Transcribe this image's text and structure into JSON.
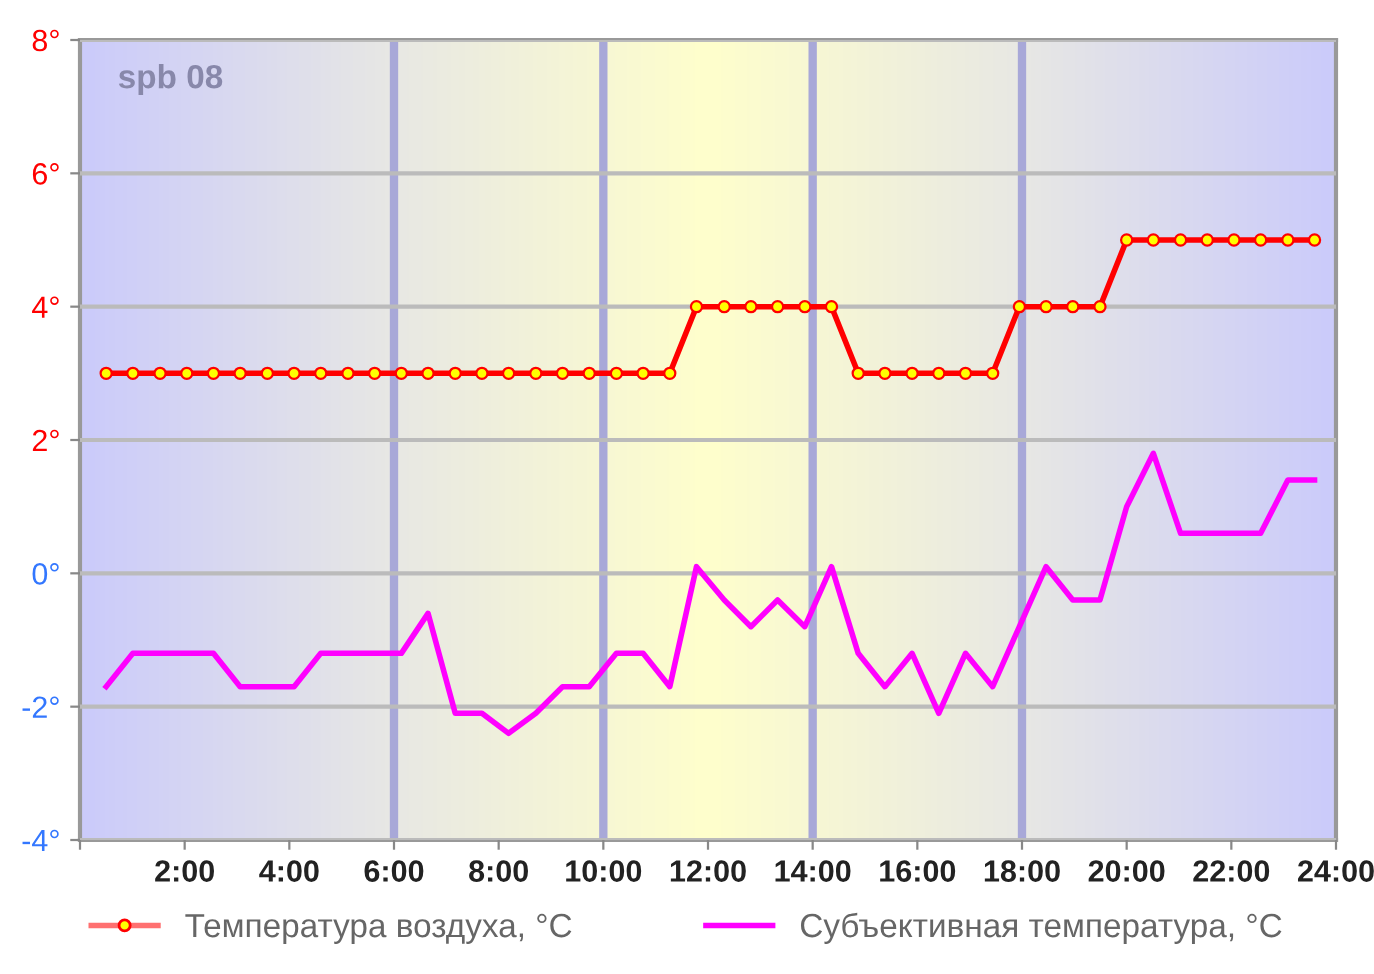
{
  "chart_data": {
    "type": "line",
    "annotations": [
      "spb 08"
    ],
    "x": [
      0.5,
      1.01,
      1.53,
      2.04,
      2.55,
      3.06,
      3.58,
      4.09,
      4.6,
      5.12,
      5.63,
      6.14,
      6.65,
      7.17,
      7.68,
      8.19,
      8.71,
      9.22,
      9.73,
      10.25,
      10.76,
      11.27,
      11.78,
      12.31,
      12.82,
      13.33,
      13.85,
      14.36,
      14.87,
      15.38,
      15.9,
      16.41,
      16.92,
      17.44,
      17.95,
      18.46,
      18.97,
      19.49,
      20.0,
      20.51,
      21.03,
      21.54,
      22.05,
      22.56,
      23.08,
      23.59
    ],
    "series": [
      {
        "name": "Температура воздуха, °C",
        "color": "#ff0000",
        "marker": "circle",
        "values": [
          3,
          3,
          3,
          3,
          3,
          3,
          3,
          3,
          3,
          3,
          3,
          3,
          3,
          3,
          3,
          3,
          3,
          3,
          3,
          3,
          3,
          3,
          4,
          4,
          4,
          4,
          4,
          4,
          3,
          3,
          3,
          3,
          3,
          3,
          4,
          4,
          4,
          4,
          5,
          5,
          5,
          5,
          5,
          5,
          5,
          5
        ]
      },
      {
        "name": "Субъективная температура, °C",
        "color": "#ff00ff",
        "marker": "none",
        "values": [
          -1.7,
          -1.2,
          -1.2,
          -1.2,
          -1.2,
          -1.7,
          -1.7,
          -1.7,
          -1.2,
          -1.2,
          -1.2,
          -1.2,
          -0.6,
          -2.1,
          -2.1,
          -2.4,
          -2.1,
          -1.7,
          -1.7,
          -1.2,
          -1.2,
          -1.7,
          0.1,
          -0.4,
          -0.8,
          -0.4,
          -0.8,
          0.1,
          -1.2,
          -1.7,
          -1.2,
          -2.1,
          -1.2,
          -1.7,
          -0.8,
          0.1,
          -0.4,
          -0.4,
          1.0,
          1.8,
          0.6,
          0.6,
          0.6,
          0.6,
          1.4,
          1.4
        ]
      }
    ],
    "xlim": [
      0,
      24
    ],
    "xticks": [
      {
        "value": 0,
        "label": null
      },
      {
        "value": 2,
        "label": "2:00"
      },
      {
        "value": 4,
        "label": "4:00"
      },
      {
        "value": 6,
        "label": "6:00"
      },
      {
        "value": 8,
        "label": "8:00"
      },
      {
        "value": 10,
        "label": "10:00"
      },
      {
        "value": 12,
        "label": "12:00"
      },
      {
        "value": 14,
        "label": "14:00"
      },
      {
        "value": 16,
        "label": "16:00"
      },
      {
        "value": 18,
        "label": "18:00"
      },
      {
        "value": 20,
        "label": "20:00"
      },
      {
        "value": 22,
        "label": "22:00"
      },
      {
        "value": 24,
        "label": "24:00"
      }
    ],
    "ylim": [
      -4,
      8
    ],
    "yticks": [
      {
        "value": -4,
        "label": "-4°"
      },
      {
        "value": -2,
        "label": "-2°"
      },
      {
        "value": 0,
        "label": "0°"
      },
      {
        "value": 2,
        "label": "2°"
      },
      {
        "value": 4,
        "label": "4°"
      },
      {
        "value": 6,
        "label": "6°"
      },
      {
        "value": 8,
        "label": "8°"
      }
    ],
    "ref_lines": [
      {
        "axis": "x",
        "value": 6,
        "color": "#a8a8d8"
      },
      {
        "axis": "x",
        "value": 10,
        "color": "#a8a8d8"
      },
      {
        "axis": "x",
        "value": 14,
        "color": "#a8a8d8"
      },
      {
        "axis": "x",
        "value": 18,
        "color": "#a8a8d8"
      }
    ],
    "grid": "y",
    "legend": "bottom"
  }
}
